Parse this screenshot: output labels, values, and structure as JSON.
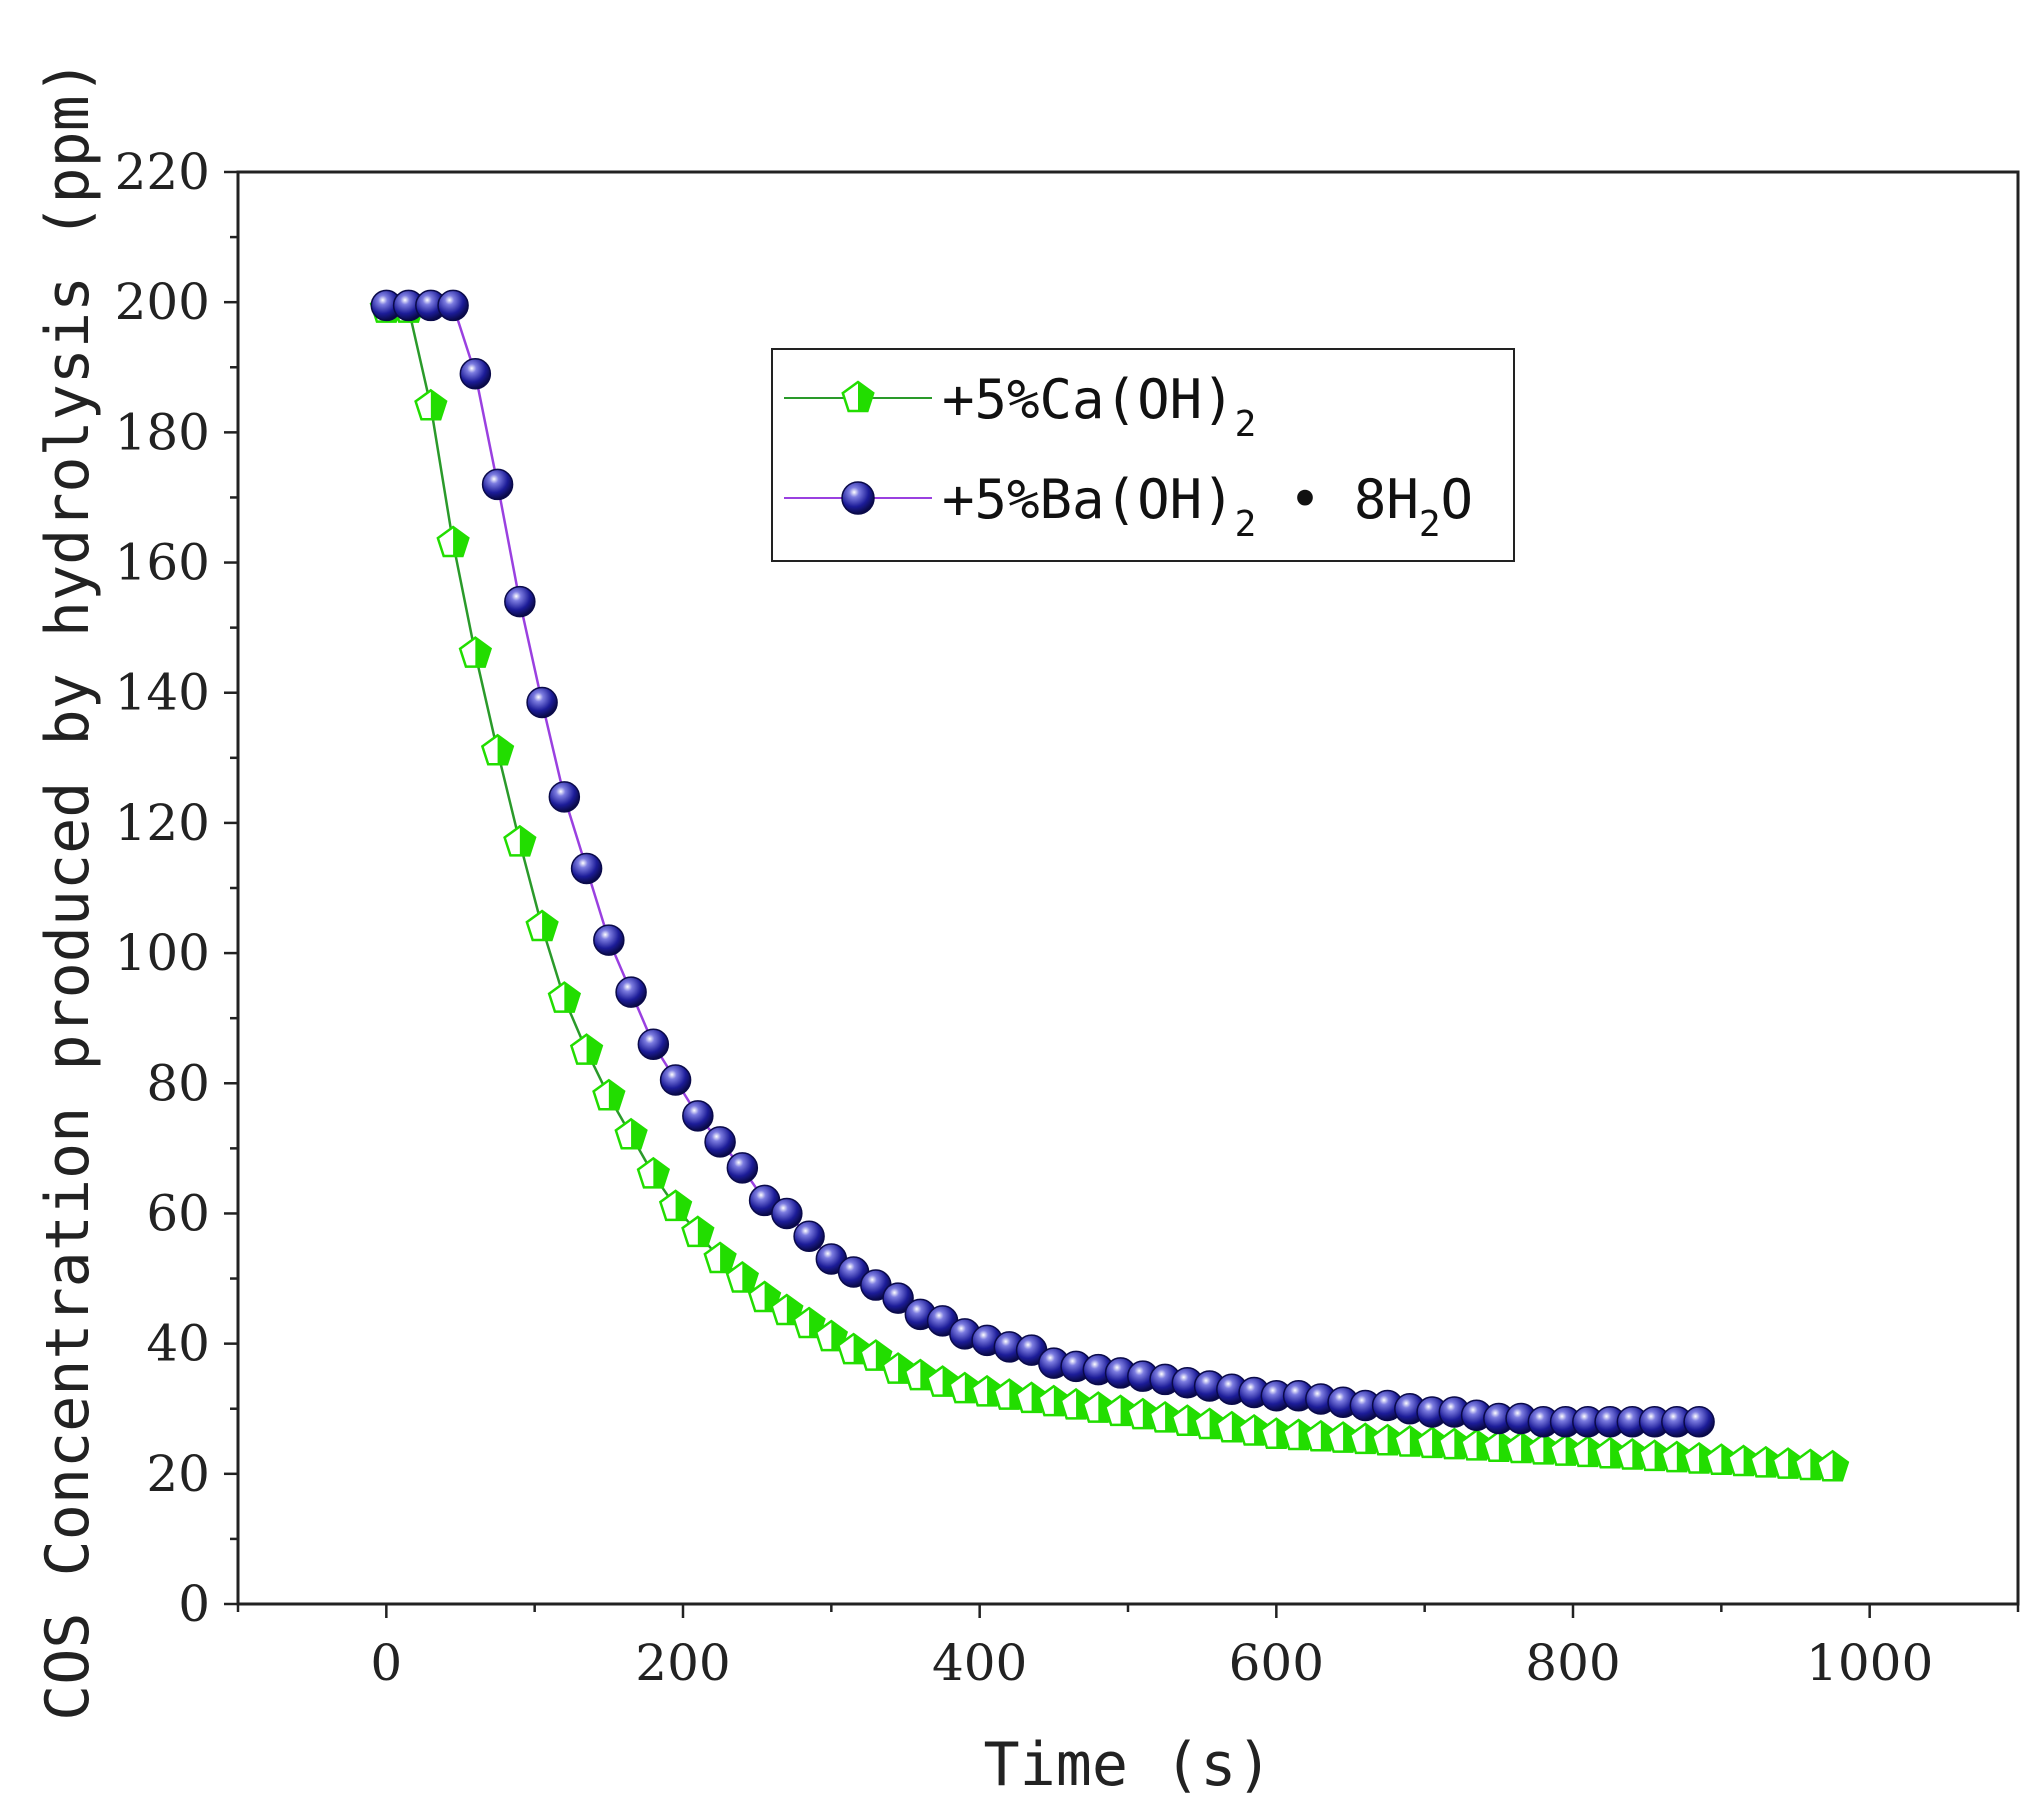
{
  "chart_data": {
    "type": "line",
    "title": "",
    "xlabel": "Time (s)",
    "ylabel": "COS Concentration produced by hydrolysis (ppm)",
    "xlim": [
      -100,
      1100
    ],
    "ylim": [
      0,
      220
    ],
    "xticks": [
      0,
      200,
      400,
      600,
      800,
      1000
    ],
    "yticks": [
      0,
      20,
      40,
      60,
      80,
      100,
      120,
      140,
      160,
      180,
      200,
      220
    ],
    "legend_position": "top-center",
    "series": [
      {
        "name": "+5%Ca(OH)2",
        "legend_main": "+5%Ca(OH)",
        "legend_sub": "2",
        "color": "#22dd00",
        "marker": "pentagon",
        "x": [
          0,
          15,
          30,
          45,
          60,
          75,
          90,
          105,
          120,
          135,
          150,
          165,
          180,
          195,
          210,
          225,
          240,
          255,
          270,
          285,
          300,
          315,
          330,
          345,
          360,
          375,
          390,
          405,
          420,
          435,
          450,
          465,
          480,
          495,
          510,
          525,
          540,
          555,
          570,
          585,
          600,
          615,
          630,
          645,
          660,
          675,
          690,
          705,
          720,
          735,
          750,
          765,
          780,
          795,
          810,
          825,
          840,
          855,
          870,
          885,
          900,
          915,
          930,
          945,
          960,
          975
        ],
        "y": [
          199,
          199,
          184,
          163,
          146,
          131,
          117,
          104,
          93,
          85,
          78,
          72,
          66,
          61,
          57,
          53,
          50,
          47,
          45,
          43,
          41,
          39,
          38,
          36,
          35,
          34,
          33,
          32.5,
          32,
          31.5,
          31,
          30.5,
          30,
          29.5,
          29,
          28.5,
          28,
          27.5,
          27,
          26.5,
          26,
          25.8,
          25.6,
          25.4,
          25.2,
          25,
          24.8,
          24.6,
          24.4,
          24.2,
          24,
          23.8,
          23.6,
          23.4,
          23.2,
          23,
          22.8,
          22.6,
          22.4,
          22.2,
          22,
          21.8,
          21.6,
          21.4,
          21.2,
          21
        ]
      },
      {
        "name": "+5%Ba(OH)2·8H2O",
        "legend_main": "+5%Ba(OH)",
        "legend_sub": "2",
        "legend_tail_a": " • 8H",
        "legend_tail_sub": "2",
        "legend_tail_b": "O",
        "color": "#1a1a90",
        "marker": "sphere",
        "x": [
          0,
          15,
          30,
          45,
          60,
          75,
          90,
          105,
          120,
          135,
          150,
          165,
          180,
          195,
          210,
          225,
          240,
          255,
          270,
          285,
          300,
          315,
          330,
          345,
          360,
          375,
          390,
          405,
          420,
          435,
          450,
          465,
          480,
          495,
          510,
          525,
          540,
          555,
          570,
          585,
          600,
          615,
          630,
          645,
          660,
          675,
          690,
          705,
          720,
          735,
          750,
          765,
          780,
          795,
          810,
          825,
          840,
          855,
          870,
          885
        ],
        "y": [
          199.5,
          199.5,
          199.5,
          199.5,
          189,
          172,
          154,
          138.5,
          124,
          113,
          102,
          94,
          86,
          80.5,
          75,
          71,
          67,
          62,
          60,
          56.5,
          53,
          51,
          49,
          47,
          44.5,
          43.5,
          41.5,
          40.5,
          39.5,
          39,
          37,
          36.5,
          36,
          35.5,
          35,
          34.5,
          34,
          33.5,
          33,
          32.5,
          32,
          32,
          31.5,
          31,
          30.5,
          30.5,
          30,
          29.5,
          29.5,
          29,
          28.5,
          28.5,
          28,
          28,
          28,
          28,
          28,
          28,
          28,
          28
        ]
      }
    ]
  }
}
